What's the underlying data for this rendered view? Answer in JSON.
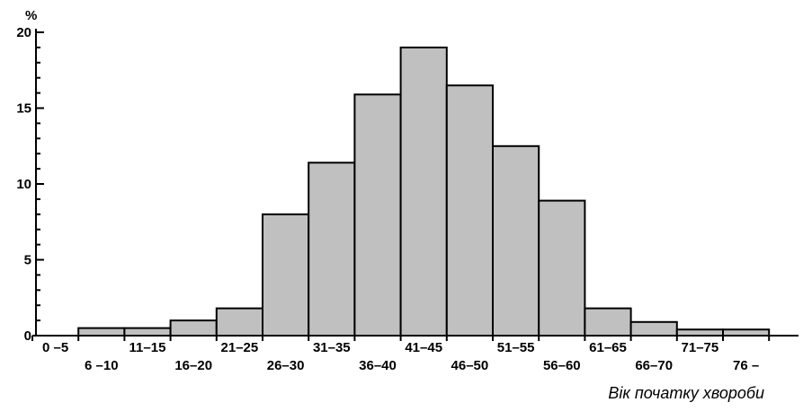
{
  "chart_data": {
    "type": "bar",
    "title": "",
    "xlabel": "Вік початку хвороби",
    "ylabel": "%",
    "ylim": [
      0,
      20
    ],
    "yticks": [
      "0",
      "5",
      "10",
      "15",
      "20"
    ],
    "grid": false,
    "legend": "none",
    "bar_color": "#c0c0c0",
    "categories": [
      "0 –5",
      "6 –10",
      "11–15",
      "16–20",
      "21–25",
      "26–30",
      "31–35",
      "36–40",
      "41–45",
      "46–50",
      "51–55",
      "56–60",
      "61–65",
      "66–70",
      "71–75",
      "76 –"
    ],
    "values": [
      0,
      0.5,
      0.5,
      1.0,
      1.8,
      8.0,
      11.4,
      15.9,
      19.0,
      16.5,
      12.5,
      8.9,
      1.8,
      0.9,
      0.4,
      0.4
    ]
  }
}
